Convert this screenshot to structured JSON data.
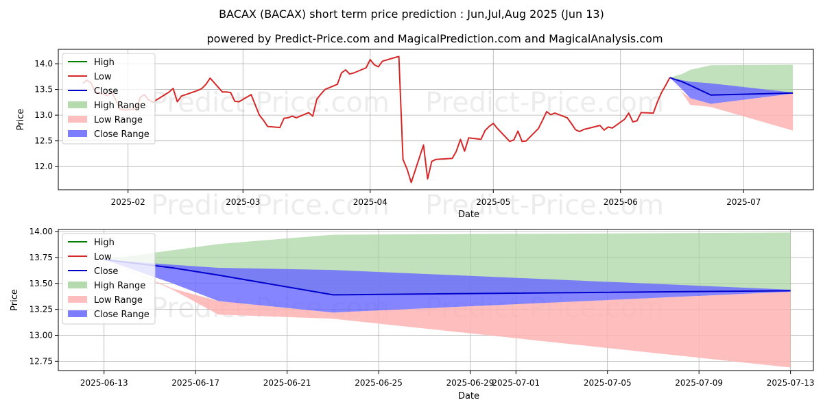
{
  "title": "BACAX (BACAX) short term price prediction : Jun,Jul,Aug 2025 (Jun 13)",
  "subtitle": "powered by Predict-Price.com and MagicalPrediction.com and MagicalAnalysis.com",
  "watermark": "Predict-Price.com",
  "colors": {
    "high": "#008000",
    "low": "#d62728",
    "close": "#0000cc",
    "high_range": "#a7d3a0",
    "low_range": "#ffb3b3",
    "close_range": "#6666ff",
    "grid": "#b0b0b0"
  },
  "legend": {
    "position": "top-left",
    "items": [
      {
        "key": "high",
        "label": "High",
        "kind": "line"
      },
      {
        "key": "low",
        "label": "Low",
        "kind": "line"
      },
      {
        "key": "close",
        "label": "Close",
        "kind": "line"
      },
      {
        "key": "high_range",
        "label": "High Range",
        "kind": "patch"
      },
      {
        "key": "low_range",
        "label": "Low Range",
        "kind": "patch"
      },
      {
        "key": "close_range",
        "label": "Close Range",
        "kind": "patch"
      }
    ]
  },
  "chart_data": [
    {
      "type": "line",
      "xlabel": "Date",
      "ylabel": "Price",
      "grid": true,
      "xlim": [
        "2025-01-15",
        "2025-07-18"
      ],
      "ylim": [
        11.55,
        14.28
      ],
      "x_ticks": [
        "2025-02-01",
        "2025-03-01",
        "2025-04-01",
        "2025-05-01",
        "2025-06-01",
        "2025-07-01"
      ],
      "x_tick_labels": [
        "2025-02",
        "2025-03",
        "2025-04",
        "2025-05",
        "2025-06",
        "2025-07"
      ],
      "y_ticks": [
        12.0,
        12.5,
        13.0,
        13.5,
        14.0
      ],
      "y_tick_labels": [
        "12.0",
        "12.5",
        "13.0",
        "13.5",
        "14.0"
      ],
      "history": {
        "x": [
          "2025-01-21",
          "2025-01-22",
          "2025-01-23",
          "2025-01-24",
          "2025-01-27",
          "2025-01-28",
          "2025-01-29",
          "2025-01-30",
          "2025-01-31",
          "2025-02-03",
          "2025-02-04",
          "2025-02-05",
          "2025-02-06",
          "2025-02-07",
          "2025-02-10",
          "2025-02-11",
          "2025-02-12",
          "2025-02-13",
          "2025-02-14",
          "2025-02-18",
          "2025-02-19",
          "2025-02-20",
          "2025-02-21",
          "2025-02-24",
          "2025-02-25",
          "2025-02-26",
          "2025-02-27",
          "2025-02-28",
          "2025-03-03",
          "2025-03-04",
          "2025-03-05",
          "2025-03-06",
          "2025-03-07",
          "2025-03-10",
          "2025-03-11",
          "2025-03-12",
          "2025-03-13",
          "2025-03-14",
          "2025-03-17",
          "2025-03-18",
          "2025-03-19",
          "2025-03-20",
          "2025-03-21",
          "2025-03-24",
          "2025-03-25",
          "2025-03-26",
          "2025-03-27",
          "2025-03-28",
          "2025-03-31",
          "2025-04-01",
          "2025-04-02",
          "2025-04-03",
          "2025-04-04",
          "2025-04-07",
          "2025-04-08",
          "2025-04-09",
          "2025-04-10",
          "2025-04-11",
          "2025-04-14",
          "2025-04-15",
          "2025-04-16",
          "2025-04-17",
          "2025-04-21",
          "2025-04-22",
          "2025-04-23",
          "2025-04-24",
          "2025-04-25",
          "2025-04-28",
          "2025-04-29",
          "2025-04-30",
          "2025-05-01",
          "2025-05-02",
          "2025-05-05",
          "2025-05-06",
          "2025-05-07",
          "2025-05-08",
          "2025-05-09",
          "2025-05-12",
          "2025-05-13",
          "2025-05-14",
          "2025-05-15",
          "2025-05-16",
          "2025-05-19",
          "2025-05-20",
          "2025-05-21",
          "2025-05-22",
          "2025-05-23",
          "2025-05-27",
          "2025-05-28",
          "2025-05-29",
          "2025-05-30",
          "2025-06-02",
          "2025-06-03",
          "2025-06-04",
          "2025-06-05",
          "2025-06-06",
          "2025-06-09",
          "2025-06-10",
          "2025-06-11",
          "2025-06-12",
          "2025-06-13"
        ],
        "low": [
          13.62,
          13.68,
          13.62,
          13.45,
          13.38,
          13.45,
          13.3,
          13.12,
          13.1,
          13.12,
          13.35,
          13.4,
          13.3,
          13.25,
          13.4,
          13.45,
          13.52,
          13.26,
          13.37,
          13.48,
          13.52,
          13.6,
          13.72,
          13.45,
          13.45,
          13.44,
          13.27,
          13.26,
          13.4,
          13.2,
          13.0,
          12.9,
          12.78,
          12.76,
          12.94,
          12.95,
          12.98,
          12.95,
          13.05,
          12.98,
          13.31,
          13.41,
          13.5,
          13.6,
          13.82,
          13.88,
          13.8,
          13.82,
          13.92,
          14.08,
          13.98,
          13.94,
          14.05,
          14.12,
          14.14,
          12.14,
          11.95,
          11.69,
          12.42,
          11.76,
          12.1,
          12.14,
          12.16,
          12.3,
          12.53,
          12.3,
          12.56,
          12.53,
          12.7,
          12.78,
          12.84,
          12.74,
          12.49,
          12.52,
          12.69,
          12.49,
          12.5,
          12.74,
          12.9,
          13.07,
          13.01,
          13.04,
          12.95,
          12.84,
          12.72,
          12.68,
          12.72,
          12.8,
          12.71,
          12.77,
          12.75,
          12.92,
          13.04,
          12.87,
          12.89,
          13.05,
          13.04,
          13.26,
          13.44,
          13.58,
          13.73
        ]
      },
      "forecast": {
        "x": [
          "2025-06-13",
          "2025-06-16",
          "2025-06-18",
          "2025-06-23",
          "2025-07-13"
        ],
        "close": [
          13.73,
          13.65,
          13.58,
          13.39,
          13.43
        ],
        "high_range_upper": [
          13.73,
          13.8,
          13.88,
          13.97,
          13.98
        ],
        "high_range_lower": [
          13.73,
          13.65,
          13.58,
          13.39,
          13.43
        ],
        "close_range_upper": [
          13.73,
          13.68,
          13.65,
          13.62,
          13.44
        ],
        "close_range_lower": [
          13.73,
          13.5,
          13.33,
          13.22,
          13.42
        ],
        "low_range_upper": [
          13.73,
          13.45,
          13.33,
          13.22,
          13.42
        ],
        "low_range_lower": [
          13.73,
          13.44,
          13.2,
          13.16,
          12.7
        ]
      }
    },
    {
      "type": "line",
      "xlabel": "Date",
      "ylabel": "Price",
      "grid": true,
      "xlim": [
        "2025-06-11",
        "2025-07-14"
      ],
      "ylim": [
        12.66,
        14.02
      ],
      "x_ticks": [
        "2025-06-13",
        "2025-06-17",
        "2025-06-21",
        "2025-06-25",
        "2025-06-29",
        "2025-07-01",
        "2025-07-05",
        "2025-07-09",
        "2025-07-13"
      ],
      "x_tick_labels": [
        "2025-06-13",
        "2025-06-17",
        "2025-06-21",
        "2025-06-25",
        "2025-06-29",
        "2025-07-01",
        "2025-07-05",
        "2025-07-09",
        "2025-07-13"
      ],
      "y_ticks": [
        12.75,
        13.0,
        13.25,
        13.5,
        13.75,
        14.0
      ],
      "y_tick_labels": [
        "12.75",
        "13.00",
        "13.25",
        "13.50",
        "13.75",
        "14.00"
      ],
      "forecast": {
        "x": [
          "2025-06-13",
          "2025-06-16",
          "2025-06-18",
          "2025-06-23",
          "2025-07-13"
        ],
        "close": [
          13.73,
          13.65,
          13.58,
          13.39,
          13.43
        ],
        "high_range_upper": [
          13.73,
          13.82,
          13.88,
          13.97,
          13.99
        ],
        "high_range_lower": [
          13.73,
          13.65,
          13.58,
          13.39,
          13.43
        ],
        "close_range_upper": [
          13.73,
          13.68,
          13.65,
          13.63,
          13.44
        ],
        "close_range_lower": [
          13.73,
          13.5,
          13.33,
          13.22,
          13.42
        ],
        "low_range_upper": [
          13.73,
          13.45,
          13.33,
          13.22,
          13.42
        ],
        "low_range_lower": [
          13.73,
          13.44,
          13.2,
          13.16,
          12.69
        ]
      }
    }
  ]
}
